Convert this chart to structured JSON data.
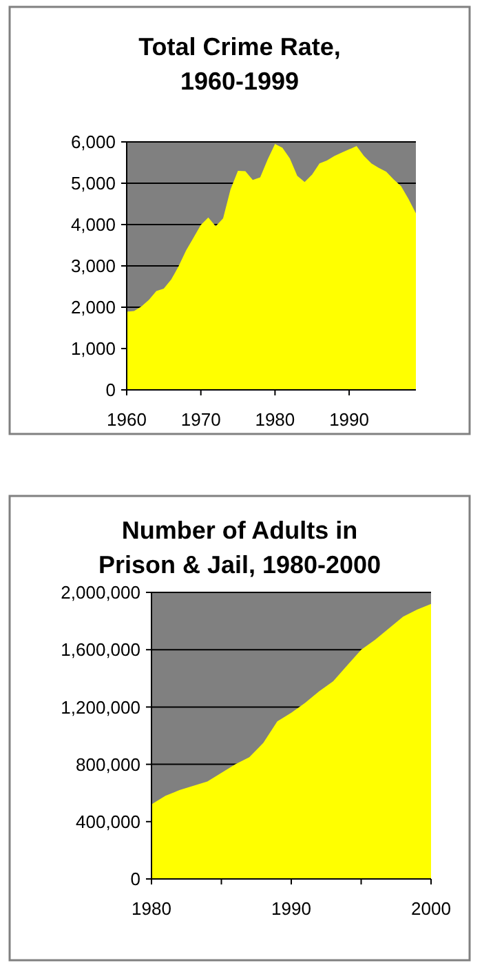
{
  "chart_data": [
    {
      "type": "area",
      "title": "Total Crime Rate, 1960-1999",
      "x": [
        1960,
        1961,
        1962,
        1963,
        1964,
        1965,
        1966,
        1967,
        1968,
        1969,
        1970,
        1971,
        1972,
        1973,
        1974,
        1975,
        1976,
        1977,
        1978,
        1979,
        1980,
        1981,
        1982,
        1983,
        1984,
        1985,
        1986,
        1987,
        1988,
        1989,
        1990,
        1991,
        1992,
        1993,
        1994,
        1995,
        1996,
        1997,
        1998,
        1999
      ],
      "series": [
        {
          "color": "#ffff00",
          "values": [
            1890,
            1910,
            2020,
            2180,
            2390,
            2450,
            2670,
            2990,
            3370,
            3680,
            3990,
            4170,
            3960,
            4150,
            4850,
            5300,
            5290,
            5080,
            5140,
            5570,
            5950,
            5860,
            5600,
            5180,
            5030,
            5210,
            5480,
            5550,
            5660,
            5740,
            5820,
            5900,
            5660,
            5480,
            5370,
            5280,
            5090,
            4930,
            4620,
            4270
          ]
        }
      ],
      "xlim": [
        1960,
        1999
      ],
      "xticks": [
        1960,
        1970,
        1980,
        1990
      ],
      "ylim": [
        0,
        6000
      ],
      "yticks": [
        0,
        {
          "value": 1000,
          "label": "1,000"
        },
        {
          "value": 2000,
          "label": "2,000"
        },
        {
          "value": 3000,
          "label": "3,000"
        },
        {
          "value": 4000,
          "label": "4,000"
        },
        {
          "value": 5000,
          "label": "5,000"
        },
        {
          "value": 6000,
          "label": "6,000"
        }
      ],
      "grid": "y"
    },
    {
      "type": "area",
      "title": "Number of Adults in Prison & Jail, 1980-2000",
      "x": [
        1980,
        1981,
        1982,
        1983,
        1984,
        1985,
        1986,
        1987,
        1988,
        1989,
        1990,
        1991,
        1992,
        1993,
        1994,
        1995,
        1996,
        1997,
        1998,
        1999,
        2000
      ],
      "series": [
        {
          "color": "#ffff00",
          "values": [
            520000,
            580000,
            620000,
            650000,
            680000,
            740000,
            800000,
            850000,
            950000,
            1100000,
            1160000,
            1230000,
            1310000,
            1380000,
            1490000,
            1600000,
            1670000,
            1750000,
            1830000,
            1880000,
            1920000
          ]
        }
      ],
      "xlim": [
        1980,
        2000
      ],
      "xticks": [
        1980,
        {
          "value": 1985,
          "label": null
        },
        1990,
        {
          "value": 1995,
          "label": null
        },
        2000
      ],
      "ylim": [
        0,
        2000000
      ],
      "yticks": [
        0,
        {
          "value": 400000,
          "label": "400,000"
        },
        {
          "value": 800000,
          "label": "800,000"
        },
        {
          "value": 1200000,
          "label": "1,200,000"
        },
        {
          "value": 1600000,
          "label": "1,600,000"
        },
        {
          "value": 2000000,
          "label": "2,000,000"
        }
      ],
      "grid": "y"
    }
  ]
}
